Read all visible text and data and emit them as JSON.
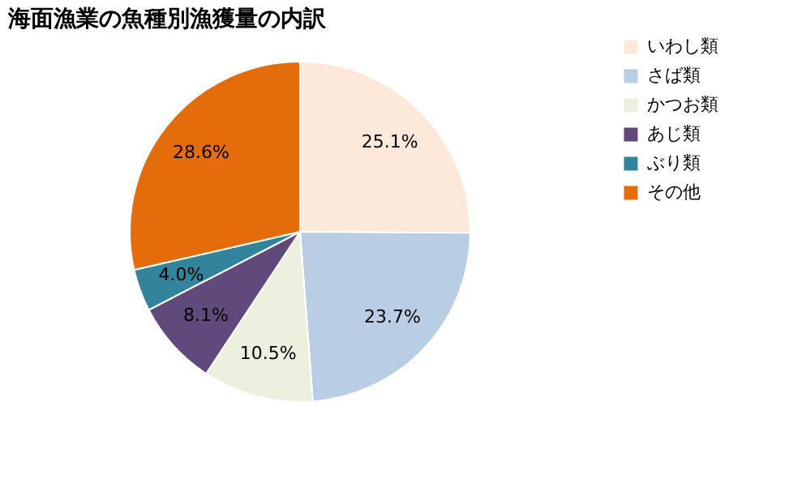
{
  "chart_data": {
    "type": "pie",
    "title": "海面漁業の魚種別漁獲量の内訳",
    "categories": [
      "いわし類",
      "さば類",
      "かつお類",
      "あじ類",
      "ぶり類",
      "その他"
    ],
    "values": [
      25.1,
      23.7,
      10.5,
      8.1,
      4.0,
      28.6
    ],
    "colors": [
      "#fde9d9",
      "#b9cde5",
      "#ebf1de",
      "#604a7b",
      "#31849b",
      "#e46c0a"
    ],
    "value_labels": [
      "25.1%",
      "23.7%",
      "10.5%",
      "8.1%",
      "4.0%",
      "28.6%"
    ],
    "legend": "right"
  }
}
